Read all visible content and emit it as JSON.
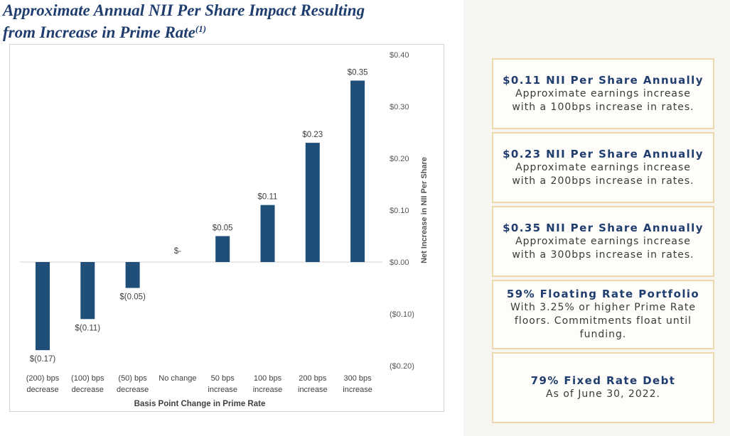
{
  "title": {
    "line1": "Approximate Annual NII Per Share Impact Resulting",
    "line2": "from Increase in Prime Rate",
    "footnote": "(1)"
  },
  "chart_data": {
    "type": "bar",
    "title": "Approximate Annual NII Per Share Impact Resulting from Increase in Prime Rate",
    "xlabel": "Basis Point Change in Prime Rate",
    "ylabel": "Net Increase in NII Per Share",
    "ylim": [
      -0.2,
      0.4
    ],
    "y_ticks": [
      0.4,
      0.3,
      0.2,
      0.1,
      0.0,
      -0.1,
      -0.2
    ],
    "y_tick_labels": [
      "$0.40",
      "$0.30",
      "$0.20",
      "$0.10",
      "$0.00",
      "($0.10)",
      "($0.20)"
    ],
    "categories": [
      [
        "(200) bps",
        "decrease"
      ],
      [
        "(100) bps",
        "decrease"
      ],
      [
        "(50) bps",
        "decrease"
      ],
      [
        "No change"
      ],
      [
        "50 bps",
        "increase"
      ],
      [
        "100 bps",
        "increase"
      ],
      [
        "200 bps",
        "increase"
      ],
      [
        "300 bps",
        "increase"
      ]
    ],
    "values": [
      -0.17,
      -0.11,
      -0.05,
      0,
      0.05,
      0.11,
      0.23,
      0.35
    ],
    "data_labels": [
      "$(0.17)",
      "$(0.11)",
      "$(0.05)",
      "$-",
      "$0.05",
      "$0.11",
      "$0.23",
      "$0.35"
    ],
    "bar_color": "#1f4e79",
    "grid": false
  },
  "cards": [
    {
      "heading": "$0.11 NII Per Share Annually",
      "lines": [
        "Approximate earnings increase",
        "with a 100bps increase in rates."
      ]
    },
    {
      "heading": "$0.23 NII Per Share Annually",
      "lines": [
        "Approximate earnings increase",
        "with a 200bps increase in rates."
      ]
    },
    {
      "heading": "$0.35 NII Per Share Annually",
      "lines": [
        "Approximate earnings increase",
        "with a 300bps increase in rates."
      ]
    },
    {
      "heading": "59% Floating Rate Portfolio",
      "lines": [
        "With 3.25% or higher Prime Rate",
        "floors. Commitments float until",
        "funding."
      ]
    },
    {
      "heading": "79% Fixed Rate Debt",
      "lines": [
        "As of June 30, 2022."
      ]
    }
  ]
}
